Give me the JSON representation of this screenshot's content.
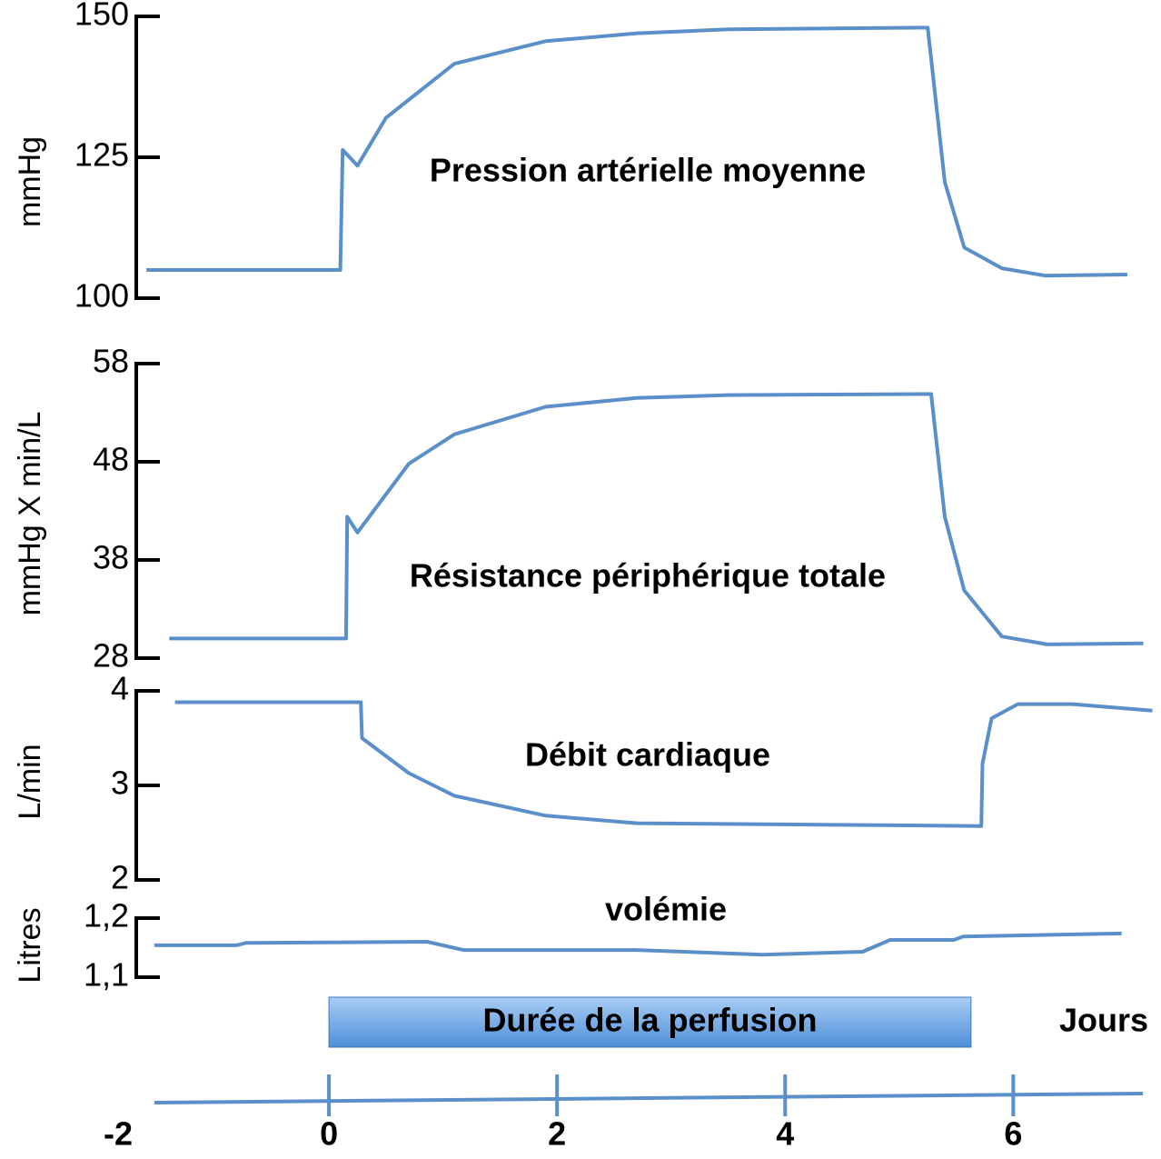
{
  "chart_data": [
    {
      "type": "line",
      "title": "Pression artérielle moyenne",
      "ylabel": "mmHg",
      "color": "#5b8fc9",
      "ylim": [
        100,
        150
      ],
      "yticks": [
        100,
        125,
        150
      ],
      "x": [
        -1.6,
        0.1,
        0.12,
        0.25,
        0.5,
        1.1,
        1.9,
        2.7,
        3.5,
        5.25,
        5.4,
        5.57,
        5.9,
        6.28,
        7.0
      ],
      "values": [
        105,
        105,
        126.3,
        123.5,
        132,
        141.6,
        145.6,
        147,
        147.7,
        148,
        120.6,
        109,
        105.3,
        104,
        104.2
      ]
    },
    {
      "type": "line",
      "title": "Résistance périphérique totale",
      "ylabel": "mmHg X min/L",
      "color": "#5b8fc9",
      "ylim": [
        28,
        58
      ],
      "yticks": [
        28,
        38,
        48,
        58
      ],
      "x": [
        -1.4,
        0.15,
        0.16,
        0.25,
        0.7,
        1.1,
        1.9,
        2.7,
        3.5,
        5.28,
        5.4,
        5.57,
        5.9,
        6.3,
        7.14
      ],
      "values": [
        30,
        30,
        42.4,
        40.8,
        47.8,
        50.8,
        53.6,
        54.5,
        54.8,
        54.9,
        42.4,
        34.9,
        30.2,
        29.4,
        29.5
      ]
    },
    {
      "type": "line",
      "title": "Débit cardiaque",
      "ylabel": "L/min",
      "color": "#5b8fc9",
      "ylim": [
        2,
        4
      ],
      "yticks": [
        2,
        3,
        4
      ],
      "x": [
        -1.35,
        0.28,
        0.29,
        0.7,
        1.1,
        1.9,
        2.7,
        5.72,
        5.73,
        5.81,
        6.04,
        6.52,
        7.22
      ],
      "values": [
        3.88,
        3.88,
        3.5,
        3.13,
        2.89,
        2.68,
        2.6,
        2.57,
        3.23,
        3.71,
        3.86,
        3.86,
        3.79
      ]
    },
    {
      "type": "line",
      "title": "volémie",
      "ylabel": "Litres",
      "color": "#5b8fc9",
      "ylim": [
        1.1,
        1.2
      ],
      "yticks": [
        {
          "value": 1.1,
          "label": "1,1"
        },
        {
          "value": 1.2,
          "label": "1,2"
        }
      ],
      "x": [
        -1.53,
        -0.81,
        -0.73,
        0.86,
        1.18,
        2.7,
        3.8,
        4.68,
        4.92,
        5.48,
        5.56,
        6.95
      ],
      "values": [
        1.154,
        1.154,
        1.158,
        1.16,
        1.146,
        1.146,
        1.138,
        1.143,
        1.163,
        1.163,
        1.169,
        1.174
      ]
    }
  ],
  "x_axis": {
    "label": "Jours",
    "xlim": [
      -2,
      7.2
    ],
    "ticks": [
      -2,
      0,
      2,
      4,
      6
    ]
  },
  "perfusion": {
    "label": "Durée de la perfusion",
    "start": 0,
    "end": 5.63
  }
}
